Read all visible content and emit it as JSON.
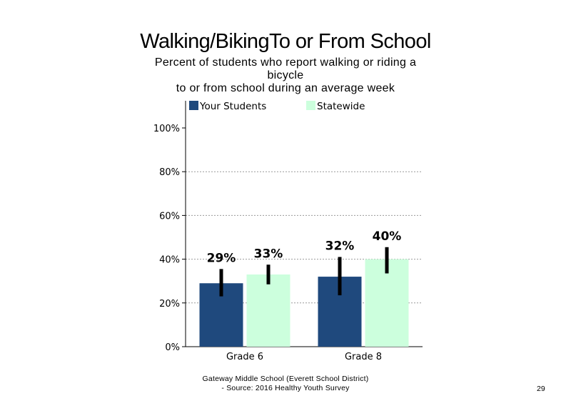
{
  "slide": {
    "title": "Walking/BikingTo or From School",
    "subtitle_lines": [
      "Percent of students who report walking or riding a",
      "bicycle",
      "to or from school during an average week"
    ],
    "footer_lines": [
      "Gateway Middle School (Everett School District)",
      "- Source: 2016 Healthy  Youth Survey"
    ],
    "page_number": "29"
  },
  "chart_data": {
    "type": "bar",
    "title": "Walking/BikingTo or From School",
    "categories": [
      "Grade 6",
      "Grade 8"
    ],
    "series": [
      {
        "name": "Your Students",
        "values": [
          29,
          32
        ],
        "labels": [
          "29%",
          "32%"
        ],
        "error_low": [
          23,
          23.5
        ],
        "error_high": [
          35.5,
          41
        ],
        "color": "#1F497D"
      },
      {
        "name": "Statewide",
        "values": [
          33,
          40
        ],
        "labels": [
          "33%",
          "40%"
        ],
        "error_low": [
          28.5,
          33.5
        ],
        "error_high": [
          37.5,
          45.5
        ],
        "color": "#CCFFDD"
      }
    ],
    "y_ticks": [
      "0%",
      "20%",
      "40%",
      "60%",
      "80%",
      "100%"
    ],
    "ylim": [
      0,
      100
    ],
    "grid": true,
    "legend_position": "top"
  }
}
